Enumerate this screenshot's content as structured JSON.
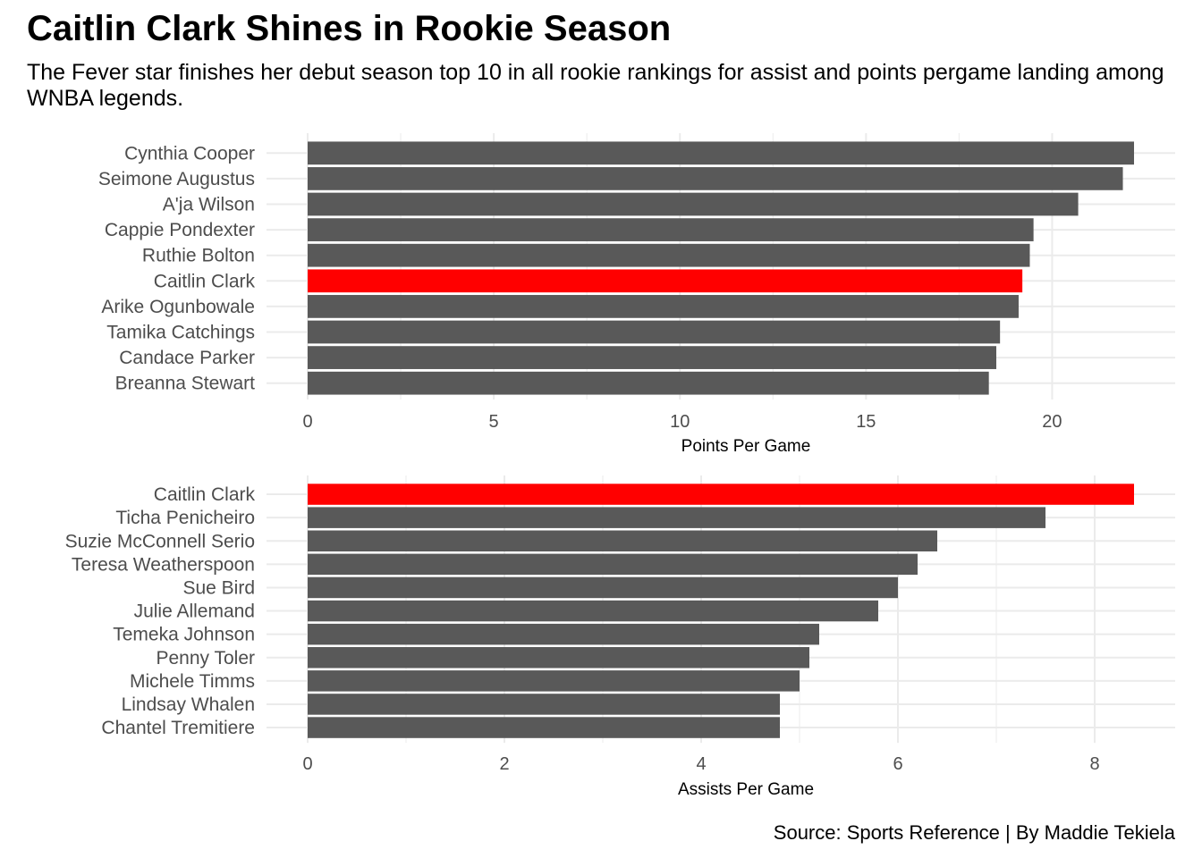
{
  "title": "Caitlin Clark Shines in Rookie Season",
  "subtitle": "The Fever star finishes her debut season top 10 in all rookie rankings for assist and points pergame landing among WNBA legends.",
  "caption": "Source: Sports Reference | By Maddie Tekiela",
  "colors": {
    "highlight": "#ff0000",
    "bar": "#595959",
    "grid": "#ebebeb"
  },
  "chart_data": [
    {
      "type": "bar",
      "orientation": "horizontal",
      "title": "",
      "xlabel": "Points Per Game",
      "ylabel": "",
      "xlim": [
        0,
        22.2
      ],
      "xticks": [
        0,
        5,
        10,
        15,
        20
      ],
      "grid": true,
      "highlight": "Caitlin Clark",
      "categories": [
        "Cynthia Cooper",
        "Seimone Augustus",
        "A'ja Wilson",
        "Cappie Pondexter",
        "Ruthie Bolton",
        "Caitlin Clark",
        "Arike Ogunbowale",
        "Tamika Catchings",
        "Candace Parker",
        "Breanna Stewart"
      ],
      "values": [
        22.2,
        21.9,
        20.7,
        19.5,
        19.4,
        19.2,
        19.1,
        18.6,
        18.5,
        18.3
      ]
    },
    {
      "type": "bar",
      "orientation": "horizontal",
      "title": "",
      "xlabel": "Assists Per Game",
      "ylabel": "",
      "xlim": [
        0,
        8.4
      ],
      "xticks": [
        0,
        2,
        4,
        6,
        8
      ],
      "grid": true,
      "highlight": "Caitlin Clark",
      "categories": [
        "Caitlin Clark",
        "Ticha Penicheiro",
        "Suzie McConnell Serio",
        "Teresa Weatherspoon",
        "Sue Bird",
        "Julie Allemand",
        "Temeka Johnson",
        "Penny Toler",
        "Michele Timms",
        "Lindsay Whalen",
        "Chantel Tremitiere"
      ],
      "values": [
        8.4,
        7.5,
        6.4,
        6.2,
        6.0,
        5.8,
        5.2,
        5.1,
        5.0,
        4.8,
        4.8
      ]
    }
  ]
}
